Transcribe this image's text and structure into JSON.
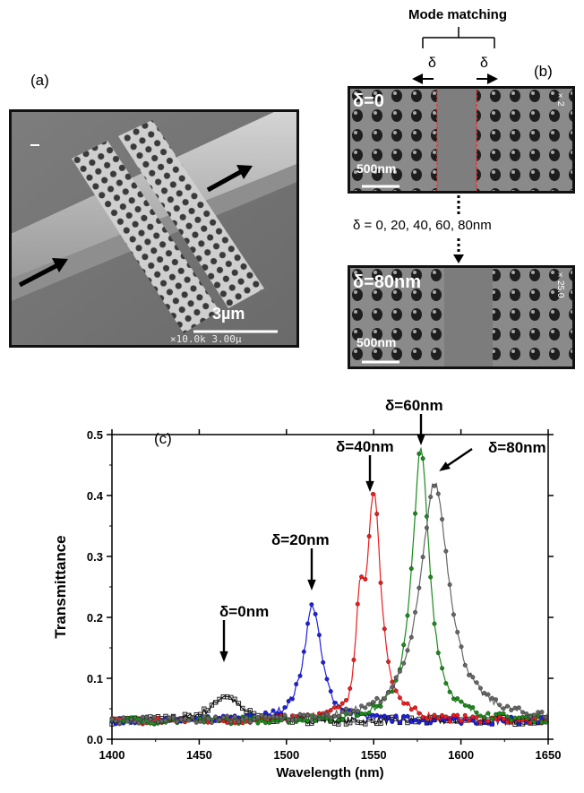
{
  "figure": {
    "panel_a": {
      "label": "(a)",
      "scale_text": "3µm",
      "imprint_text": "×10.0k 3.00µ"
    },
    "panel_b": {
      "label": "(b)",
      "mode_matching_label": "Mode matching",
      "delta_left": "δ",
      "delta_right": "δ",
      "top_image_label": "δ=0",
      "top_scale_text": "500nm",
      "sweep_label": "δ = 0, 20, 40, 60, 80nm",
      "bottom_image_label": "δ=80nm",
      "bottom_scale_text": "500nm",
      "corner_mark_top": "×2",
      "corner_mark_bottom": "×25.0"
    },
    "panel_c": {
      "label": "(c)"
    }
  },
  "chart_data": {
    "type": "line",
    "xlabel": "Wavelength (nm)",
    "ylabel": "Transmittance",
    "xlim": [
      1400,
      1650
    ],
    "ylim": [
      0.0,
      0.5
    ],
    "xticks": [
      1400,
      1450,
      1500,
      1550,
      1600,
      1650
    ],
    "yticks": [
      0.0,
      0.1,
      0.2,
      0.3,
      0.4,
      0.5
    ],
    "legend": "none",
    "grid": false,
    "series": [
      {
        "name": "δ=0nm",
        "color": "#111111",
        "marker": "open-square",
        "peak_x": 1465,
        "peak_y": 0.072,
        "width": 9,
        "shoulder": null
      },
      {
        "name": "δ=20nm",
        "color": "#1f1fe0",
        "marker": "filled-circle",
        "peak_x": 1515,
        "peak_y": 0.22,
        "width": 6,
        "shoulder": null
      },
      {
        "name": "δ=40nm",
        "color": "#ee1c1c",
        "marker": "filled-circle",
        "peak_x": 1550,
        "peak_y": 0.41,
        "width": 5,
        "shoulder": [
          1542,
          0.31
        ]
      },
      {
        "name": "δ=60nm",
        "color": "#1a8a1a",
        "marker": "filled-circle",
        "peak_x": 1577,
        "peak_y": 0.475,
        "width": 6,
        "shoulder": null
      },
      {
        "name": "δ=80nm",
        "color": "#666666",
        "marker": "filled-circle",
        "peak_x": 1585,
        "peak_y": 0.42,
        "width": 10,
        "shoulder": null
      }
    ],
    "annotations": [
      {
        "text": "δ=0nm",
        "target_x": 1465,
        "target_y": 0.075
      },
      {
        "text": "δ=20nm",
        "target_x": 1515,
        "target_y": 0.23
      },
      {
        "text": "δ=40nm",
        "target_x": 1550,
        "target_y": 0.42
      },
      {
        "text": "δ=60nm",
        "target_x": 1577,
        "target_y": 0.485
      },
      {
        "text": "δ=80nm",
        "target_x": 1587,
        "target_y": 0.425
      }
    ]
  }
}
